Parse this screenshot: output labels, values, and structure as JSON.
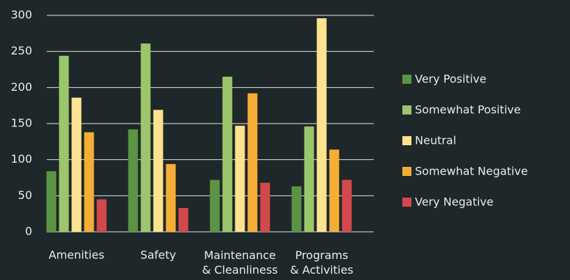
{
  "chart_data": {
    "type": "bar",
    "categories": [
      "Amenities",
      "Safety",
      "Maintenance\n& Cleanliness",
      "Programs\n& Activities"
    ],
    "series": [
      {
        "name": "Very Positive",
        "color": "#5b9442",
        "values": [
          84,
          142,
          72,
          63
        ]
      },
      {
        "name": "Somewhat Positive",
        "color": "#9cc66b",
        "values": [
          244,
          261,
          215,
          146
        ]
      },
      {
        "name": "Neutral",
        "color": "#fde390",
        "values": [
          186,
          169,
          147,
          296
        ]
      },
      {
        "name": "Somewhat Negative",
        "color": "#f5ae35",
        "values": [
          138,
          94,
          192,
          114
        ]
      },
      {
        "name": "Very Negative",
        "color": "#d3484c",
        "values": [
          45,
          33,
          68,
          72
        ]
      }
    ],
    "ylim": [
      0,
      300
    ],
    "yticks": [
      0,
      50,
      100,
      150,
      200,
      250,
      300
    ],
    "grid": true,
    "legend": "right"
  }
}
